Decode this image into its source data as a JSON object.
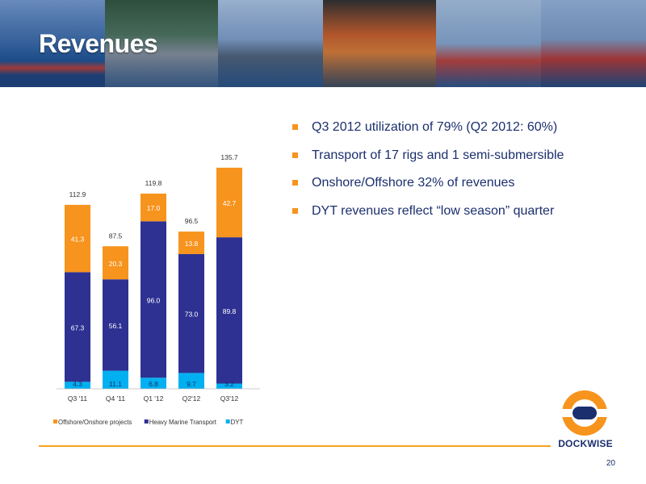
{
  "slide": {
    "title": "Revenues",
    "page_number": "20",
    "logo_text": "DOCKWISE"
  },
  "bullets": [
    "Q3 2012 utilization of 79% (Q2 2012: 60%)",
    "Transport of 17 rigs and 1 semi-submersible",
    "Onshore/Offshore 32% of revenues",
    "DYT revenues reflect “low season” quarter"
  ],
  "chart_data": {
    "type": "bar",
    "stacked": true,
    "categories": [
      "Q3 '11",
      "Q4 '11",
      "Q1 '12",
      "Q2'12",
      "Q3'12"
    ],
    "series": [
      {
        "name": "DYT",
        "color": "#00b0f0",
        "values": [
          4.3,
          11.1,
          6.8,
          9.7,
          3.2
        ]
      },
      {
        "name": "Heavy Marine Transport",
        "color": "#2e3192",
        "values": [
          67.3,
          56.1,
          96.0,
          73.0,
          89.8
        ]
      },
      {
        "name": "Offshore/Onshore projects",
        "color": "#f7941d",
        "values": [
          41.3,
          20.3,
          17.0,
          13.8,
          42.7
        ]
      }
    ],
    "totals": [
      112.9,
      87.5,
      119.8,
      96.5,
      135.7
    ],
    "legend": [
      "Offshore/Onshore projects",
      "Heavy Marine Transport",
      "DYT"
    ],
    "legend_position": "bottom",
    "ylim": [
      0,
      140
    ],
    "grid": false
  }
}
